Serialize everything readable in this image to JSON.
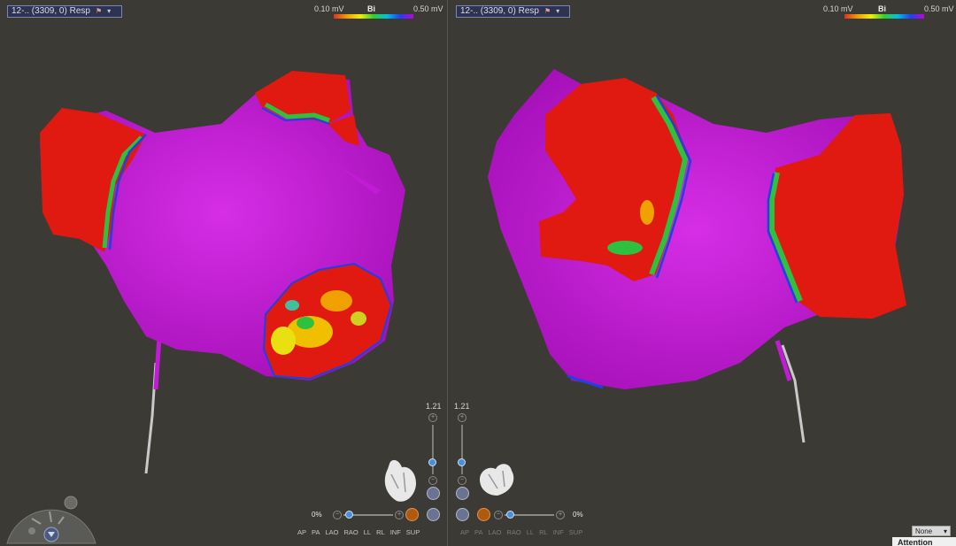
{
  "left_view": {
    "map_selector": "12-.. (3309, 0) Resp",
    "scale": {
      "min": "0.10 mV",
      "max": "0.50 mV",
      "type": "Bi"
    },
    "zoom": "1.21",
    "opacity": "0%",
    "views": [
      "AP",
      "PA",
      "LAO",
      "RAO",
      "LL",
      "RL",
      "INF",
      "SUP"
    ]
  },
  "right_view": {
    "map_selector": "12-.. (3309, 0) Resp",
    "scale": {
      "min": "0.10 mV",
      "max": "0.50 mV",
      "type": "Bi"
    },
    "zoom": "1.21",
    "opacity": "0%",
    "views": [
      "AP",
      "PA",
      "LAO",
      "RAO",
      "LL",
      "RL",
      "INF",
      "SUP"
    ]
  },
  "colors": {
    "voltage_scar": "#e01a10",
    "voltage_normal": "#c21bd6",
    "background": "#3b3a34"
  },
  "icons": [
    "dropdown-icon",
    "compass-icon",
    "heart-orientation-icon",
    "camera-icon"
  ],
  "footer": {
    "selection": "None",
    "attention": "Attention"
  }
}
